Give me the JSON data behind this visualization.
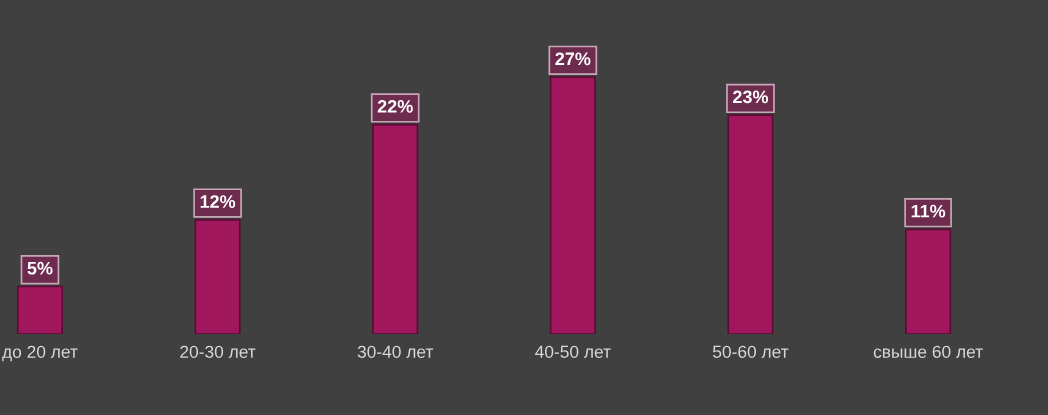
{
  "chart_data": {
    "type": "bar",
    "categories": [
      "до 20 лет",
      "20-30 лет",
      "30-40 лет",
      "40-50 лет",
      "50-60 лет",
      "свыше 60 лет"
    ],
    "values": [
      5,
      12,
      22,
      27,
      23,
      11
    ],
    "value_labels": [
      "5%",
      "12%",
      "22%",
      "27%",
      "23%",
      "11%"
    ],
    "color": "#a0175e",
    "grid": false,
    "tick_labels": "x"
  }
}
